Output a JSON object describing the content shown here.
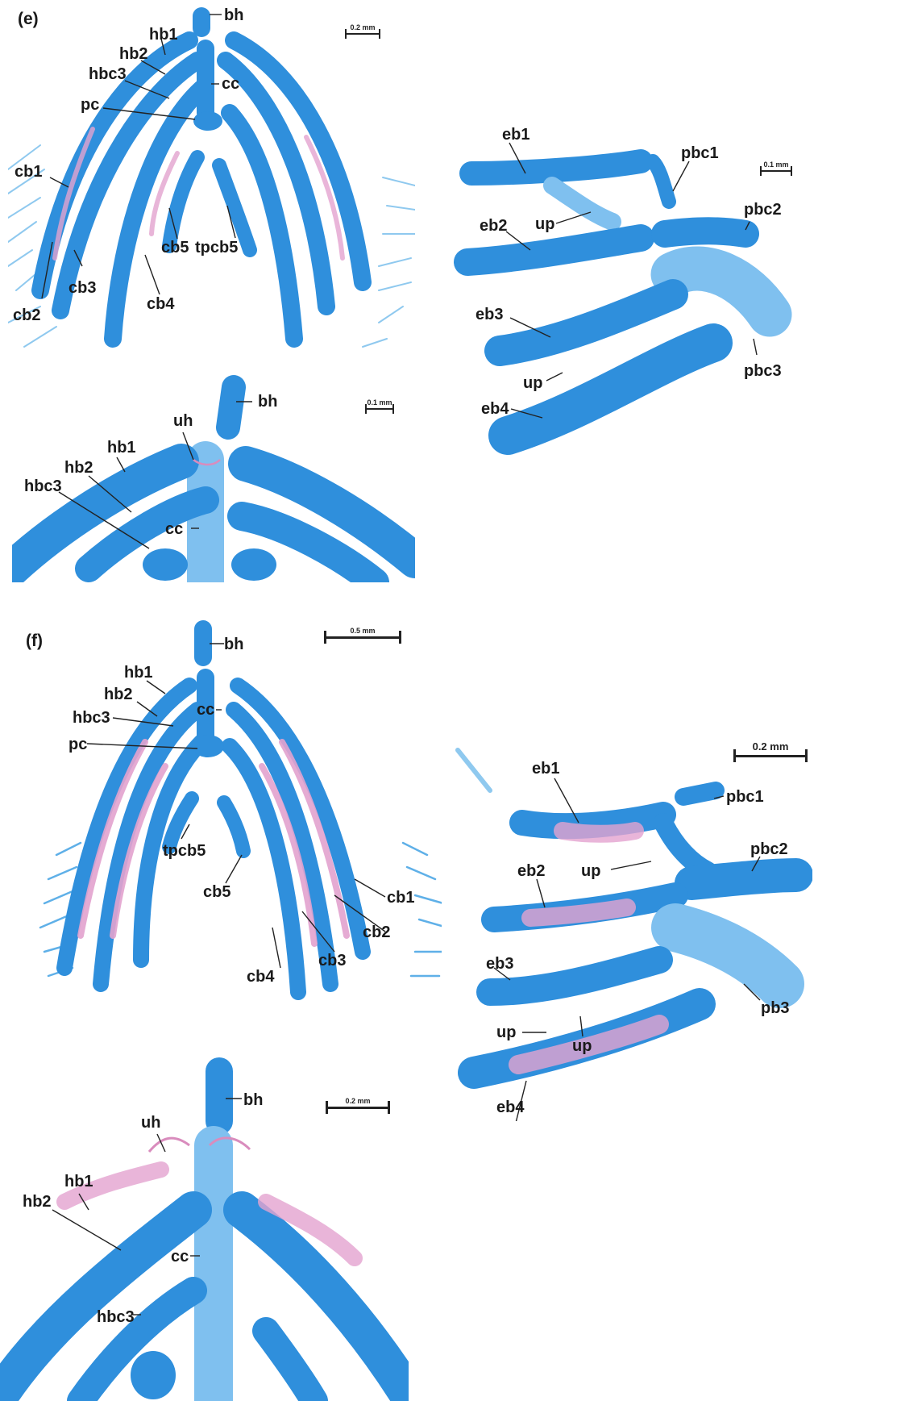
{
  "panel_labels": {
    "e": "(e)",
    "f": "(f)"
  },
  "scale_bars": {
    "e_top_left": "0.2 mm",
    "e_top_right": "0.1 mm",
    "e_bottom_left": "0.1 mm",
    "f_top_left": "0.5 mm",
    "f_right": "0.2 mm",
    "f_bottom_left": "0.2 mm"
  },
  "labels": {
    "e_tl": {
      "bh": "bh",
      "hb1": "hb1",
      "hb2": "hb2",
      "hbc3": "hbc3",
      "cc": "cc",
      "pc": "pc",
      "cb1": "cb1",
      "cb2": "cb2",
      "cb3": "cb3",
      "cb4": "cb4",
      "cb5": "cb5",
      "tpcb5": "tpcb5"
    },
    "e_tr": {
      "eb1": "eb1",
      "pbc1": "pbc1",
      "up1": "up",
      "eb2": "eb2",
      "pbc2": "pbc2",
      "eb3": "eb3",
      "pbc3": "pbc3",
      "up2": "up",
      "eb4": "eb4"
    },
    "e_bl": {
      "bh": "bh",
      "uh": "uh",
      "hb1": "hb1",
      "hb2": "hb2",
      "hbc3": "hbc3",
      "cc": "cc"
    },
    "f_tl": {
      "bh": "bh",
      "hb1": "hb1",
      "hb2": "hb2",
      "cc": "cc",
      "hbc3": "hbc3",
      "pc": "pc",
      "tpcb5": "tpcb5",
      "cb5": "cb5",
      "cb1": "cb1",
      "cb2": "cb2",
      "cb3": "cb3",
      "cb4": "cb4"
    },
    "f_r": {
      "eb1": "eb1",
      "pbc1": "pbc1",
      "pbc2": "pbc2",
      "up1": "up",
      "eb2": "eb2",
      "eb3": "eb3",
      "pb3": "pb3",
      "up2": "up",
      "up3": "up",
      "eb4": "eb4"
    },
    "f_bl": {
      "bh": "bh",
      "uh": "uh",
      "hb1": "hb1",
      "hb2": "hb2",
      "cc": "cc",
      "hbc3": "hbc3"
    }
  },
  "colors": {
    "cartilage": "#2f8fdc",
    "cartilage_light": "#7fc0ef",
    "bone": "#e3a3cf",
    "text": "#1a1a1a"
  }
}
